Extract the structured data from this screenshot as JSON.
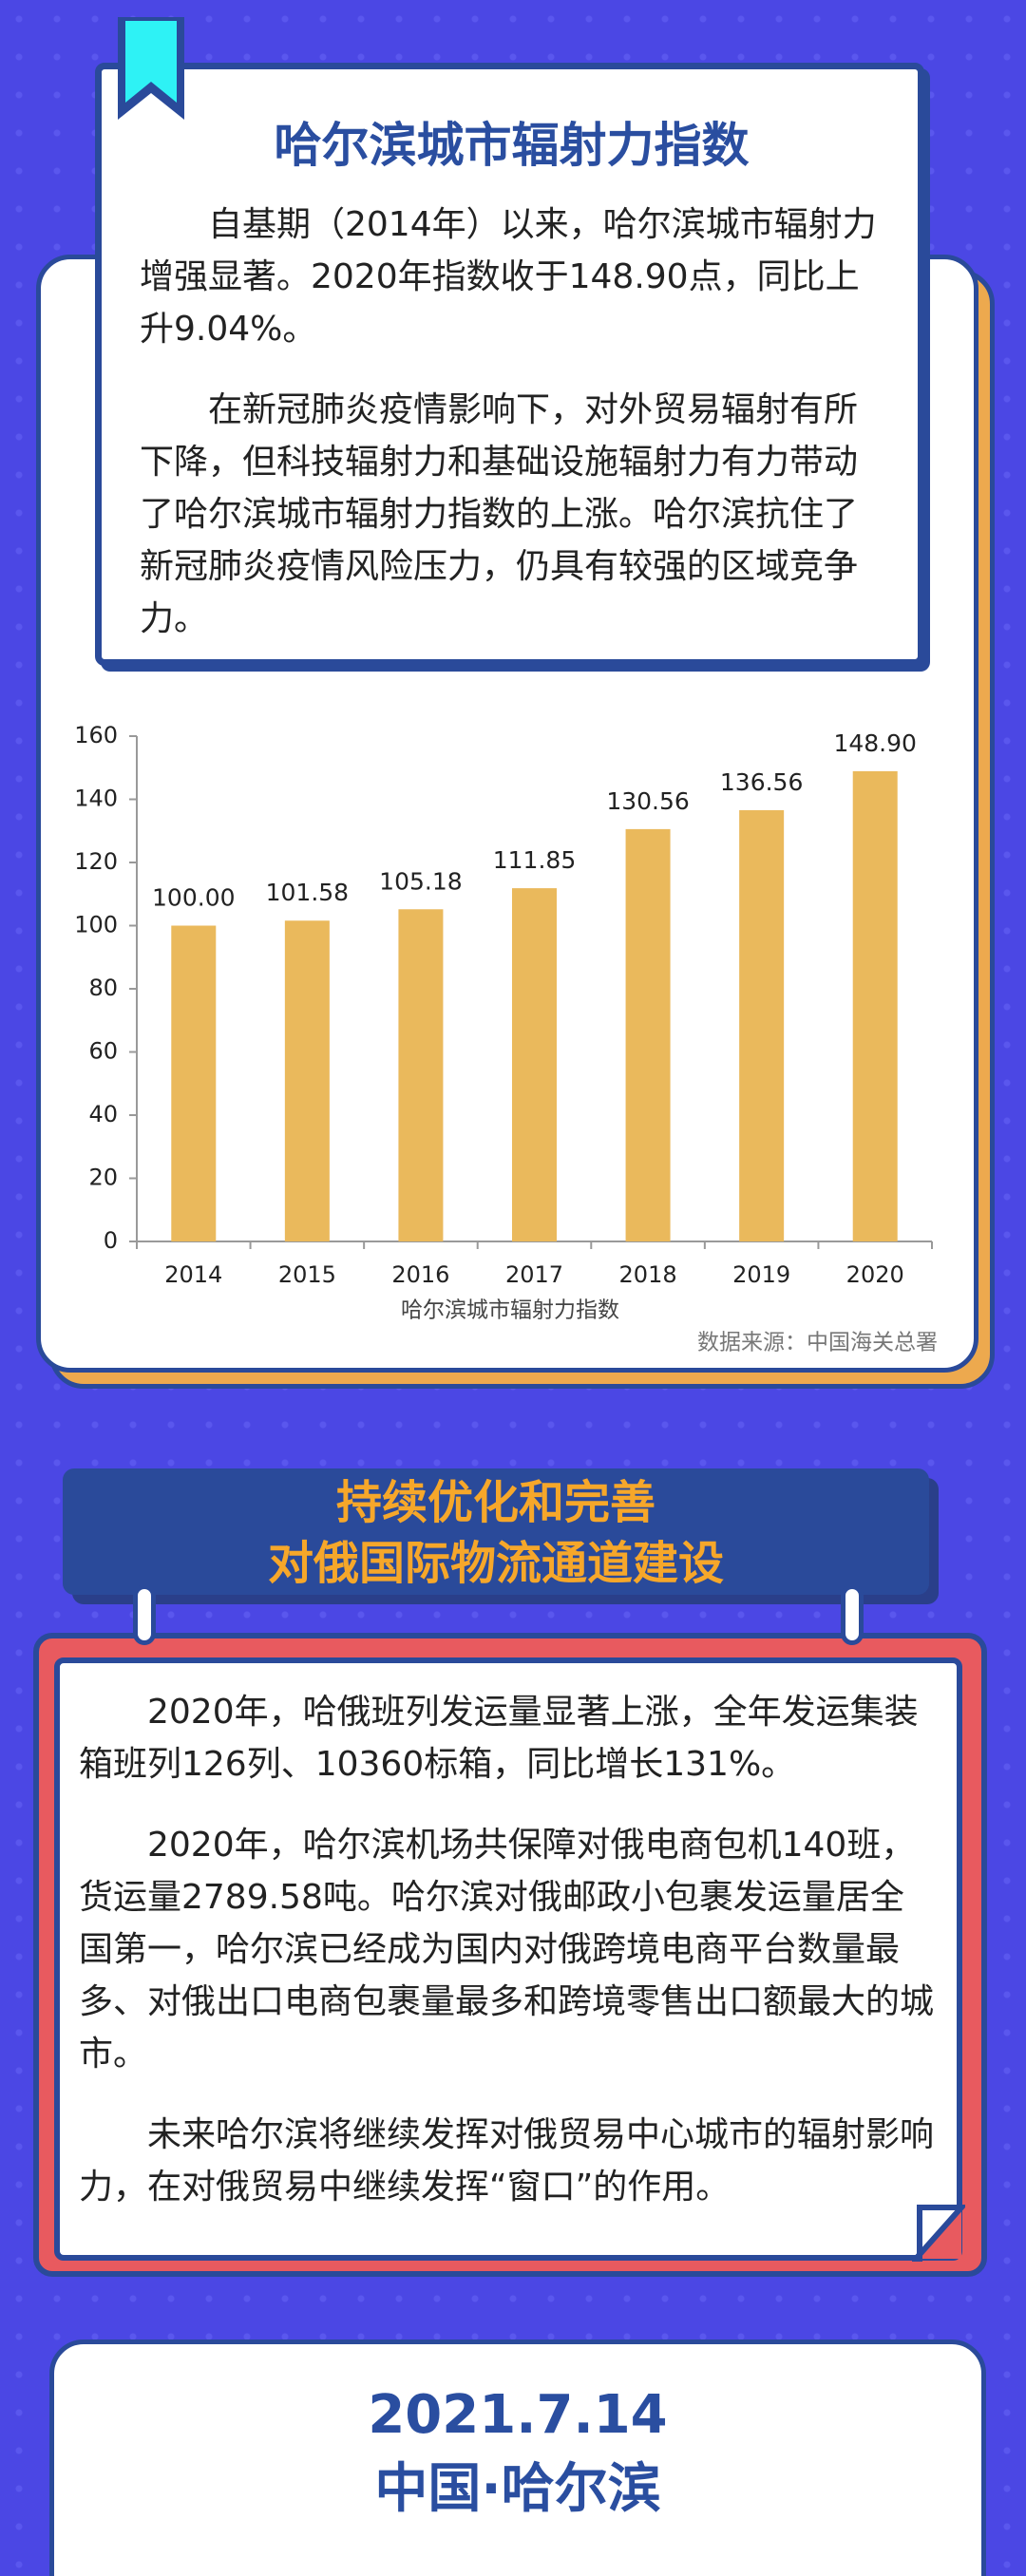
{
  "header": {
    "title": "哈尔滨城市辐射力指数"
  },
  "intro": {
    "paragraphs": [
      "自基期（2014年）以来，哈尔滨城市辐射力增强显著。2020年指数收于148.90点，同比上升9.04%。",
      "在新冠肺炎疫情影响下，对外贸易辐射有所下降，但科技辐射力和基础设施辐射力有力带动了哈尔滨城市辐射力指数的上涨。哈尔滨抗住了新冠肺炎疫情风险压力，仍具有较强的区域竞争力。"
    ]
  },
  "chart_data": {
    "type": "bar",
    "categories": [
      "2014",
      "2015",
      "2016",
      "2017",
      "2018",
      "2019",
      "2020"
    ],
    "values": [
      100.0,
      101.58,
      105.18,
      111.85,
      130.56,
      136.56,
      148.9
    ],
    "value_labels": [
      "100.00",
      "101.58",
      "105.18",
      "111.85",
      "130.56",
      "136.56",
      "148.90"
    ],
    "color": "#eab95c",
    "ylim": [
      0,
      160
    ],
    "yticks": [
      0,
      20,
      40,
      60,
      80,
      100,
      120,
      140,
      160
    ],
    "x_label": "哈尔滨城市辐射力指数",
    "source": "数据来源：中国海关总署"
  },
  "section2": {
    "title_lines": [
      "持续优化和完善",
      "对俄国际物流通道建设"
    ],
    "paragraphs": [
      "2020年，哈俄班列发运量显著上涨，全年发运集装箱班列126列、10360标箱，同比增长131%。",
      "2020年，哈尔滨机场共保障对俄电商包机140班，货运量2789.58吨。哈尔滨对俄邮政小包裹发运量居全国第一，哈尔滨已经成为国内对俄跨境电商平台数量最多、对俄出口电商包裹量最多和跨境零售出口额最大的城市。",
      "未来哈尔滨将继续发挥对俄贸易中心城市的辐射影响力，在对俄贸易中继续发挥“窗口”的作用。"
    ]
  },
  "footer": {
    "date": "2021.7.14",
    "place": "中国·哈尔滨"
  }
}
